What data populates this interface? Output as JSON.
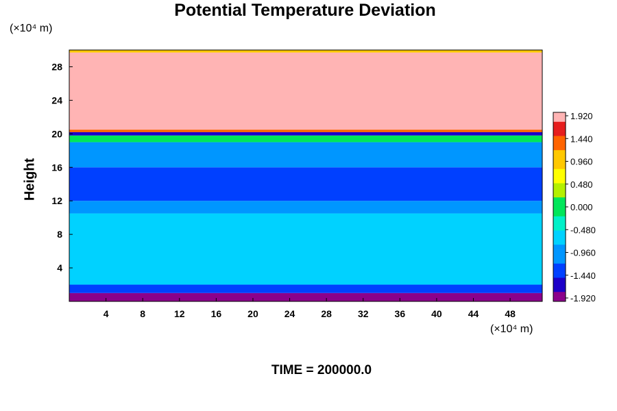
{
  "chart_data": {
    "type": "heatmap",
    "title": "Potential Temperature Deviation",
    "ylabel": "Height",
    "xlabel": "",
    "y_unit": "(×10⁴ m)",
    "x_unit": "(×10⁴ m)",
    "footer": "TIME = 200000.0",
    "xlim": [
      0,
      51.5
    ],
    "ylim": [
      0,
      30
    ],
    "x_ticks": [
      4,
      8,
      12,
      16,
      20,
      24,
      28,
      32,
      36,
      40,
      44,
      48
    ],
    "y_ticks": [
      4,
      8,
      12,
      16,
      20,
      24,
      28
    ],
    "x_tick_labels": [
      "4",
      "8",
      "12",
      "16",
      "20",
      "24",
      "28",
      "32",
      "36",
      "40",
      "44",
      "48"
    ],
    "y_tick_labels": [
      "4",
      "8",
      "12",
      "16",
      "20",
      "24",
      "28"
    ],
    "colorbar": {
      "min": -1.92,
      "max": 1.92,
      "labels": [
        "1.920",
        "1.440",
        "0.960",
        "0.480",
        "0.000",
        "-0.480",
        "-0.960",
        "-1.440",
        "-1.920"
      ],
      "label_values": [
        1.92,
        1.44,
        0.96,
        0.48,
        0.0,
        -0.48,
        -0.96,
        -1.44,
        -1.92
      ]
    },
    "bands": [
      {
        "y0": 0.0,
        "y1": 1.0,
        "value": -1.92
      },
      {
        "y0": 1.0,
        "y1": 2.0,
        "value": -1.2
      },
      {
        "y0": 2.0,
        "y1": 10.5,
        "value": -0.7
      },
      {
        "y0": 10.5,
        "y1": 12.0,
        "value": -1.0
      },
      {
        "y0": 12.0,
        "y1": 16.0,
        "value": -1.35
      },
      {
        "y0": 16.0,
        "y1": 19.0,
        "value": -1.1
      },
      {
        "y0": 19.0,
        "y1": 19.8,
        "value": -0.1
      },
      {
        "y0": 19.8,
        "y1": 20.2,
        "value": -1.6
      },
      {
        "y0": 20.2,
        "y1": 20.5,
        "value": 1.3
      },
      {
        "y0": 20.5,
        "y1": 29.7,
        "value": 1.92
      },
      {
        "y0": 29.7,
        "y1": 30.0,
        "value": 1.0
      }
    ],
    "colors": {
      "palette": [
        "#8b008b",
        "#1c00c8",
        "#0040ff",
        "#0096ff",
        "#00d2ff",
        "#00f0c8",
        "#00e65a",
        "#b4f000",
        "#ffff00",
        "#ffc800",
        "#ff6400",
        "#e61e1e",
        "#ffb4b4"
      ]
    }
  }
}
